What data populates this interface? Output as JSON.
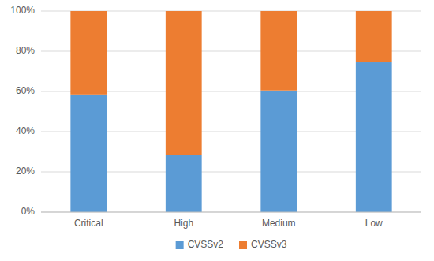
{
  "chart_data": {
    "type": "bar",
    "stacked": true,
    "categories": [
      "Critical",
      "High",
      "Medium",
      "Low"
    ],
    "series": [
      {
        "name": "CVSSv2",
        "color": "#5B9BD5",
        "values": [
          0.585,
          0.285,
          0.605,
          0.745
        ]
      },
      {
        "name": "CVSSv3",
        "color": "#ED7D31",
        "values": [
          0.415,
          0.715,
          0.395,
          0.255
        ]
      }
    ],
    "ylim": [
      0,
      1.0
    ],
    "yticks": [
      {
        "value": 0,
        "label": "0%"
      },
      {
        "value": 0.2,
        "label": "20%"
      },
      {
        "value": 0.4,
        "label": "40%"
      },
      {
        "value": 0.6,
        "label": "60%"
      },
      {
        "value": 0.8,
        "label": "80%"
      },
      {
        "value": 1.0,
        "label": "100%"
      }
    ],
    "grid": true,
    "legend": "bottom"
  }
}
